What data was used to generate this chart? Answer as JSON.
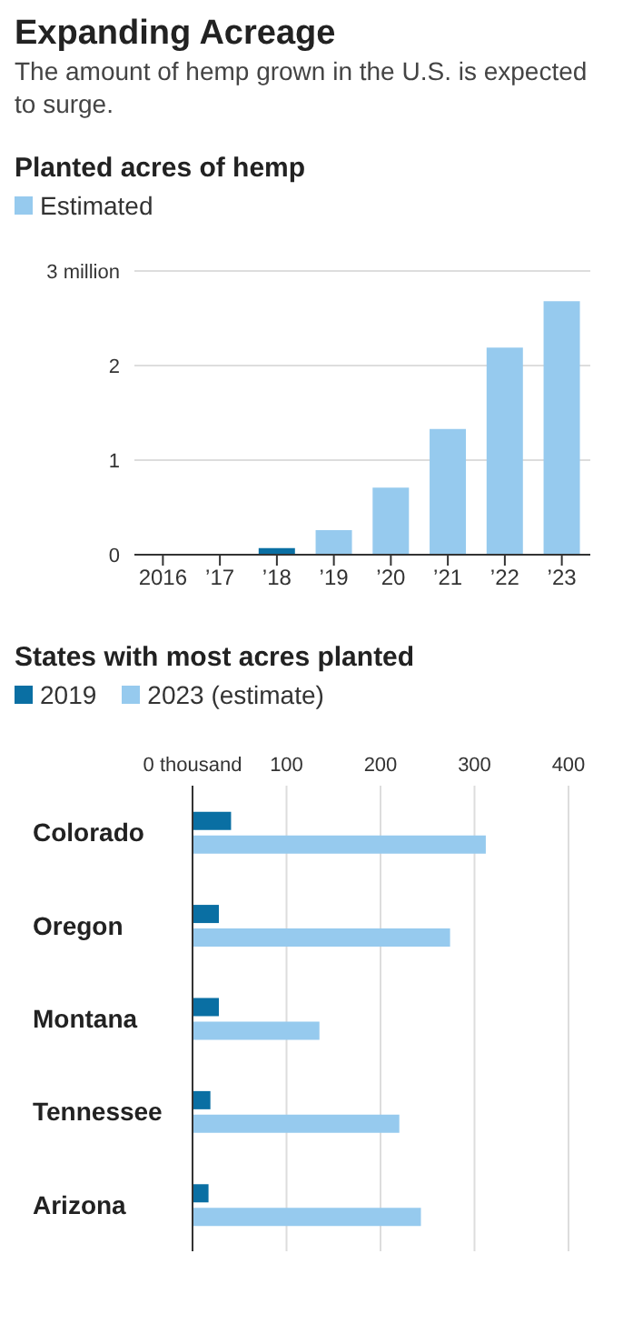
{
  "chart_data": [
    {
      "type": "bar",
      "title": "Expanding Acreage",
      "subtitle": "The amount of hemp grown in the U.S. is expected to surge.",
      "ylabel": "Planted acres of hemp",
      "categories": [
        "2016",
        "’17",
        "’18",
        "’19",
        "’20",
        "’21",
        "’22",
        "’23"
      ],
      "series": [
        {
          "color": "#0a6fa3",
          "values": [
            0,
            0,
            0.07,
            null,
            null,
            null,
            null,
            null
          ]
        },
        {
          "name": "Estimated",
          "color": "#96caee",
          "values": [
            null,
            null,
            null,
            0.26,
            0.71,
            1.33,
            2.19,
            2.68
          ]
        }
      ],
      "stacked": true,
      "ylim": [
        0,
        3
      ],
      "yticks": [
        0,
        1,
        2,
        {
          "value": 3,
          "label": "3 million"
        }
      ],
      "grid": "y",
      "legend": "top left"
    },
    {
      "type": "bar",
      "title": "States with most acres planted",
      "orientation": "horizontal",
      "categories": [
        "Colorado",
        "Oregon",
        "Montana",
        "Tennessee",
        "Arizona"
      ],
      "series": [
        {
          "name": "2019",
          "color": "#0a6fa3",
          "values": [
            41,
            28,
            28,
            19,
            17
          ]
        },
        {
          "name": "2023 (estimate)",
          "color": "#96caee",
          "values": [
            312,
            274,
            135,
            220,
            243
          ]
        }
      ],
      "xlim": [
        0,
        400
      ],
      "xticks": [
        {
          "value": 0,
          "label": "0 thousand"
        },
        100,
        200,
        300,
        400
      ],
      "grid": "x",
      "legend": "top left"
    }
  ]
}
